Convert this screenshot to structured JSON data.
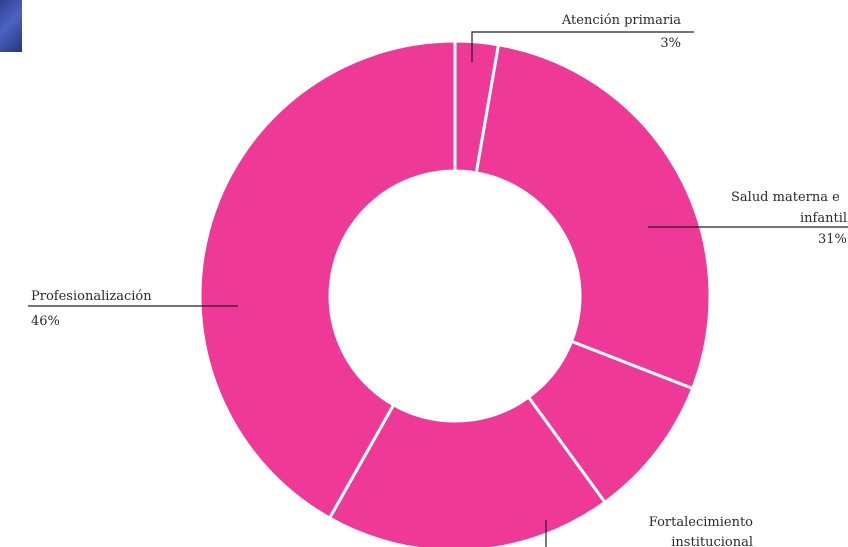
{
  "chart_data": {
    "type": "pie",
    "style": "donut",
    "color": "#ee3a96",
    "separator_color": "#ffffff",
    "slices": [
      {
        "label": "Atención primaria",
        "value": 3
      },
      {
        "label": "Salud materna e infantil",
        "value": 31
      },
      {
        "label": "",
        "value": 10
      },
      {
        "label": "Fortalecimiento institucional",
        "value": 20
      },
      {
        "label": "Profesionalización",
        "value": 46
      }
    ]
  },
  "labels": {
    "atencion": {
      "name": "Atención primaria",
      "pct": "3%"
    },
    "salud": {
      "line1": "Salud materna e",
      "line2": "infantil",
      "pct": "31%"
    },
    "profesionalizacion": {
      "name": "Profesionalización",
      "pct": "46%"
    },
    "fortalecimiento": {
      "line1": "Fortalecimiento",
      "line2": "institucional"
    }
  }
}
